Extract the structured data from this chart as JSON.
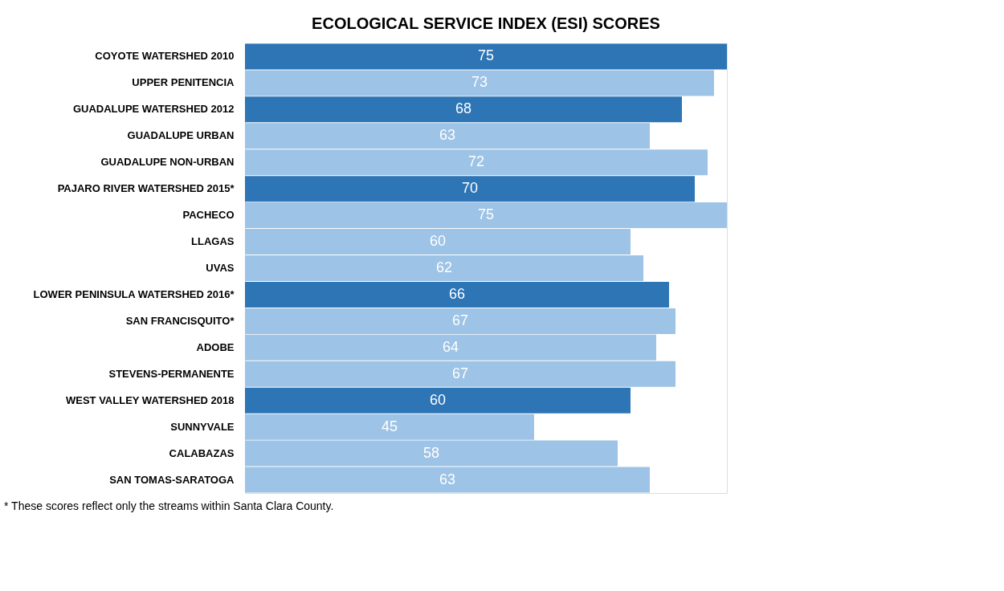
{
  "chart_data": {
    "type": "bar",
    "orientation": "horizontal",
    "title": "ECOLOGICAL SERVICE INDEX (ESI) SCORES",
    "categories": [
      "COYOTE WATERSHED 2010",
      "UPPER PENITENCIA",
      "GUADALUPE WATERSHED 2012",
      "GUADALUPE URBAN",
      "GUADALUPE NON-URBAN",
      "PAJARO RIVER WATERSHED 2015*",
      "PACHECO",
      "LLAGAS",
      "UVAS",
      "LOWER PENINSULA WATERSHED 2016*",
      "SAN FRANCISQUITO*",
      "ADOBE",
      "STEVENS-PERMANENTE",
      "WEST VALLEY WATERSHED 2018",
      "SUNNYVALE",
      "CALABAZAS",
      "SAN TOMAS-SARATOGA"
    ],
    "values": [
      75,
      73,
      68,
      63,
      72,
      70,
      75,
      60,
      62,
      66,
      67,
      64,
      67,
      60,
      45,
      58,
      63
    ],
    "colors": [
      "#2e75b6",
      "#9dc3e6",
      "#2e75b6",
      "#9dc3e6",
      "#9dc3e6",
      "#2e75b6",
      "#9dc3e6",
      "#9dc3e6",
      "#9dc3e6",
      "#2e75b6",
      "#9dc3e6",
      "#9dc3e6",
      "#9dc3e6",
      "#2e75b6",
      "#9dc3e6",
      "#9dc3e6",
      "#9dc3e6"
    ],
    "data_labels": true,
    "annotations": [
      "* These scores reflect only the streams within Santa Clara County."
    ]
  }
}
